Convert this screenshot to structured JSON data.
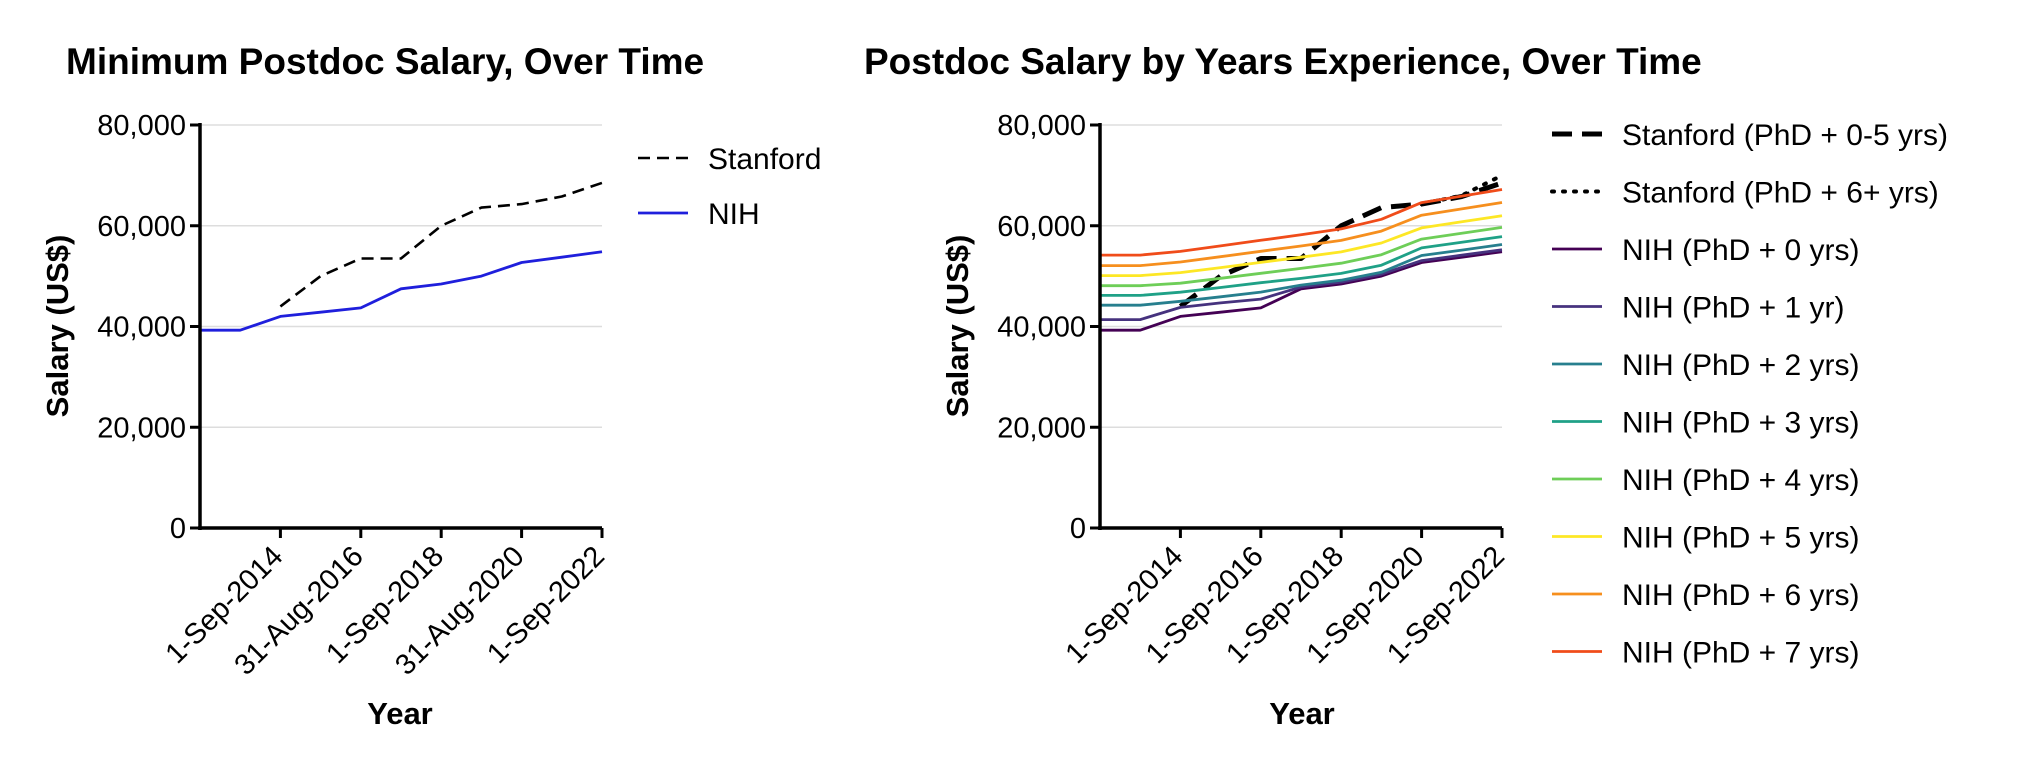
{
  "chart_data": [
    {
      "type": "line",
      "title": "Minimum Postdoc Salary, Over Time",
      "xlabel": "Year",
      "ylabel": "Salary (US$)",
      "ylim": [
        0,
        80000
      ],
      "yticks": [
        "0",
        "20,000",
        "40,000",
        "60,000",
        "80,000"
      ],
      "xticks": [
        "1-Sep-2014",
        "31-Aug-2016",
        "1-Sep-2018",
        "31-Aug-2020",
        "1-Sep-2022"
      ],
      "x": [
        "1-Sep-2012",
        "1-Sep-2013",
        "1-Sep-2014",
        "1-Sep-2015",
        "31-Aug-2016",
        "1-Sep-2017",
        "1-Sep-2018",
        "1-Sep-2019",
        "31-Aug-2020",
        "1-Sep-2021",
        "1-Sep-2022"
      ],
      "grid": true,
      "legend_position": "right",
      "series": [
        {
          "name": "Stanford",
          "color": "#000000",
          "dash": "dashed",
          "values": [
            null,
            null,
            44000,
            50000,
            53500,
            53500,
            60000,
            63600,
            64300,
            65800,
            68500
          ]
        },
        {
          "name": "NIH",
          "color": "#1f1fdc",
          "dash": "solid",
          "values": [
            39264,
            39264,
            42000,
            42840,
            43692,
            47484,
            48432,
            50004,
            52704,
            53760,
            54840
          ]
        }
      ]
    },
    {
      "type": "line",
      "title": "Postdoc Salary by Years Experience, Over Time",
      "xlabel": "Year",
      "ylabel": "Salary (US$)",
      "ylim": [
        0,
        80000
      ],
      "yticks": [
        "0",
        "20,000",
        "40,000",
        "60,000",
        "80,000"
      ],
      "xticks": [
        "1-Sep-2014",
        "1-Sep-2016",
        "1-Sep-2018",
        "1-Sep-2020",
        "1-Sep-2022"
      ],
      "x": [
        "1-Sep-2012",
        "1-Sep-2013",
        "1-Sep-2014",
        "1-Sep-2015",
        "1-Sep-2016",
        "1-Sep-2017",
        "1-Sep-2018",
        "1-Sep-2019",
        "1-Sep-2020",
        "1-Sep-2021",
        "1-Sep-2022"
      ],
      "grid": true,
      "legend_position": "right",
      "series": [
        {
          "name": "Stanford (PhD + 0-5 yrs)",
          "color": "#000000",
          "dash": "bold-dashed",
          "values": [
            null,
            null,
            44000,
            50000,
            53500,
            53500,
            60000,
            63600,
            64300,
            65800,
            68500
          ]
        },
        {
          "name": "Stanford (PhD + 6+ yrs)",
          "color": "#000000",
          "dash": "dotted",
          "values": [
            null,
            null,
            null,
            null,
            null,
            null,
            null,
            null,
            64300,
            66000,
            70000
          ]
        },
        {
          "name": "NIH (PhD + 0 yrs)",
          "color": "#440154",
          "dash": "solid",
          "values": [
            39264,
            39264,
            42000,
            42840,
            43692,
            47484,
            48432,
            50004,
            52704,
            53760,
            54840
          ]
        },
        {
          "name": "NIH (PhD + 1 yr)",
          "color": "#46327e",
          "dash": "solid",
          "values": [
            41364,
            41364,
            43800,
            44676,
            45444,
            47844,
            48816,
            50376,
            53076,
            54144,
            55224
          ]
        },
        {
          "name": "NIH (PhD + 2 yrs)",
          "color": "#277f8e",
          "dash": "solid",
          "values": [
            44232,
            44232,
            45000,
            45900,
            46824,
            48216,
            49188,
            50760,
            54096,
            55176,
            56280
          ]
        },
        {
          "name": "NIH (PhD + 3 yrs)",
          "color": "#1fa187",
          "dash": "solid",
          "values": [
            46164,
            46164,
            46800,
            47736,
            48696,
            49548,
            50544,
            52164,
            55596,
            56712,
            57852
          ]
        },
        {
          "name": "NIH (PhD + 4 yrs)",
          "color": "#6ece58",
          "dash": "solid",
          "values": [
            48108,
            48108,
            48600,
            49572,
            50568,
            51540,
            52572,
            54252,
            57348,
            58500,
            59676
          ]
        },
        {
          "name": "NIH (PhD + 5 yrs)",
          "color": "#fde725",
          "dash": "solid",
          "values": [
            50112,
            50112,
            50700,
            51696,
            52728,
            53748,
            54816,
            56580,
            59580,
            60780,
            61992
          ]
        },
        {
          "name": "NIH (PhD + 6 yrs)",
          "color": "#f68f1e",
          "dash": "solid",
          "values": [
            52092,
            52092,
            52800,
            53856,
            54936,
            55980,
            57096,
            58932,
            62100,
            63348,
            64608
          ]
        },
        {
          "name": "NIH (PhD + 7 yrs)",
          "color": "#f04c1a",
          "dash": "solid",
          "values": [
            54180,
            54180,
            54900,
            55992,
            57120,
            58212,
            59376,
            61272,
            64596,
            65880,
            67200
          ]
        }
      ]
    }
  ]
}
